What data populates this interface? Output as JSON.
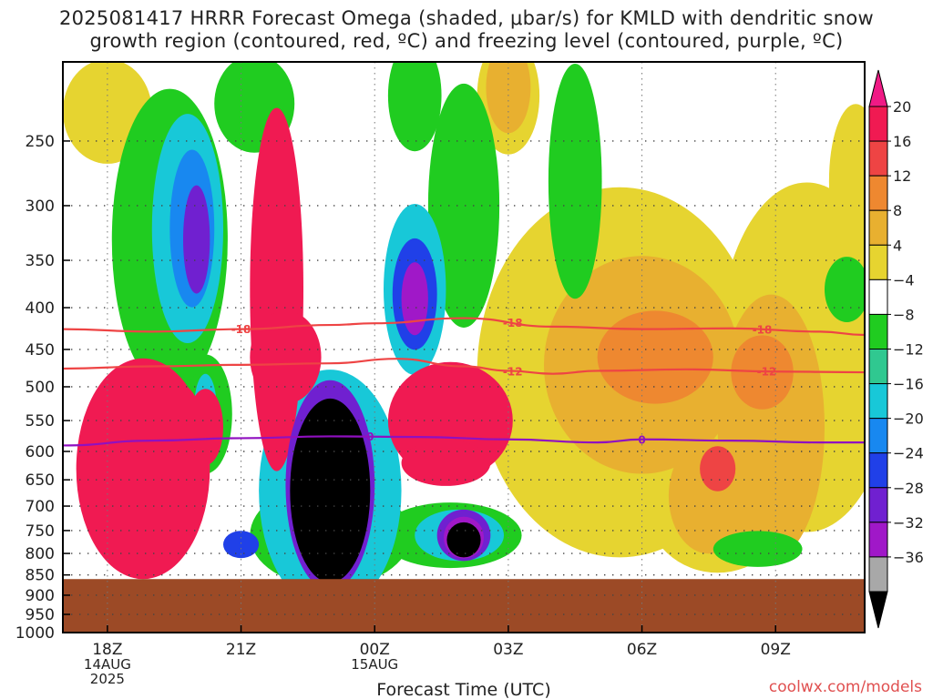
{
  "title": {
    "line1": "2025081417 HRRR Forecast Omega (shaded, μbar/s) for KMLD with dendritic snow",
    "line2": "growth region (contoured, red, ºC) and freezing level (contoured, purple, ºC)"
  },
  "credit": "coolwx.com/models",
  "chart_data": {
    "type": "heatmap",
    "title": "2025081417 HRRR Forecast Omega (shaded, μbar/s) for KMLD with dendritic snow growth region (contoured, red, ºC) and freezing level (contoured, purple, ºC)",
    "xlabel": "Forecast Time (UTC)",
    "ylabel": "",
    "x_ticks": [
      {
        "hour": 0,
        "label": [
          "18Z",
          "14AUG",
          "2025"
        ]
      },
      {
        "hour": 3,
        "label": [
          "21Z"
        ]
      },
      {
        "hour": 6,
        "label": [
          "00Z",
          "15AUG"
        ]
      },
      {
        "hour": 9,
        "label": [
          "03Z"
        ]
      },
      {
        "hour": 12,
        "label": [
          "06Z"
        ]
      },
      {
        "hour": 15,
        "label": [
          "09Z"
        ]
      }
    ],
    "xlim": [
      -1,
      17
    ],
    "y_ticks": [
      250,
      300,
      350,
      400,
      450,
      500,
      550,
      600,
      650,
      700,
      750,
      800,
      850,
      900,
      950,
      1000
    ],
    "ylim_hpa": [
      200,
      1000
    ],
    "y_scale": "log-pressure",
    "ground_pressure": 860,
    "grid": true,
    "colorbar": {
      "ticks": [
        "20",
        "16",
        "12",
        "8",
        "4",
        "−4",
        "−8",
        "−12",
        "−16",
        "−20",
        "−24",
        "−28",
        "−32",
        "−36"
      ],
      "colors": [
        "#f01a52",
        "#ee4444",
        "#ee8830",
        "#e8b030",
        "#e6d430",
        "#ffffff",
        "#20cc20",
        "#30c890",
        "#18c8d8",
        "#1888f0",
        "#2040e8",
        "#7020d0",
        "#a018c8",
        "#a8a8a8",
        "#000000"
      ],
      "top_arrow_color": "#f01a85",
      "bottom_arrow_color": "#000000"
    },
    "contours": [
      {
        "name": "-18",
        "color": "#ee4444",
        "points": [
          [
            -1,
            425
          ],
          [
            1,
            428
          ],
          [
            3,
            425
          ],
          [
            5,
            420
          ],
          [
            6,
            418
          ],
          [
            8,
            412
          ],
          [
            10,
            422
          ],
          [
            12,
            425
          ],
          [
            14,
            424
          ],
          [
            16,
            428
          ],
          [
            17,
            432
          ]
        ],
        "label_hours": [
          3,
          9.1,
          14.7
        ]
      },
      {
        "name": "-12",
        "color": "#ee4444",
        "points": [
          [
            -1,
            475
          ],
          [
            1,
            472
          ],
          [
            3,
            470
          ],
          [
            5,
            468
          ],
          [
            6.5,
            462
          ],
          [
            8,
            472
          ],
          [
            9,
            478
          ],
          [
            10,
            482
          ],
          [
            11,
            478
          ],
          [
            13,
            476
          ],
          [
            15,
            479
          ],
          [
            17,
            480
          ]
        ],
        "label_hours": [
          9.1,
          14.8
        ]
      },
      {
        "name": "0",
        "color": "#9010c0",
        "points": [
          [
            -1,
            590
          ],
          [
            1,
            582
          ],
          [
            3,
            578
          ],
          [
            5,
            575
          ],
          [
            7,
            576
          ],
          [
            9,
            580
          ],
          [
            11,
            585
          ],
          [
            12,
            580
          ],
          [
            14,
            582
          ],
          [
            16,
            585
          ],
          [
            17,
            585
          ]
        ],
        "label_hours": [
          5.9,
          12
        ]
      }
    ],
    "omega_fields": [
      {
        "value": 20,
        "h": 0.8,
        "p": 630,
        "rx": 1.5,
        "ry": 190
      },
      {
        "value": 20,
        "h": 1.5,
        "p": 550,
        "rx": 0.6,
        "ry": 60
      },
      {
        "value": 20,
        "h": 3.8,
        "p": 380,
        "rx": 0.6,
        "ry": 180
      },
      {
        "value": 20,
        "h": 2.2,
        "p": 560,
        "rx": 0.4,
        "ry": 60
      },
      {
        "value": 20,
        "h": 7.7,
        "p": 550,
        "rx": 1.4,
        "ry": 90
      },
      {
        "value": 20,
        "h": 7.6,
        "p": 620,
        "rx": 1.0,
        "ry": 40
      },
      {
        "value": 20,
        "h": 4.0,
        "p": 460,
        "rx": 0.8,
        "ry": 60
      },
      {
        "value": 16,
        "h": 13.7,
        "p": 630,
        "rx": 0.4,
        "ry": 40
      },
      {
        "value": 12,
        "h": 12.3,
        "p": 460,
        "rx": 1.3,
        "ry": 60
      },
      {
        "value": 12,
        "h": 14.7,
        "p": 480,
        "rx": 0.7,
        "ry": 50
      },
      {
        "value": 8,
        "h": 12.0,
        "p": 470,
        "rx": 2.2,
        "ry": 140
      },
      {
        "value": 8,
        "h": 13.5,
        "p": 680,
        "rx": 0.9,
        "ry": 110
      },
      {
        "value": 8,
        "h": 14.9,
        "p": 560,
        "rx": 1.2,
        "ry": 200
      },
      {
        "value": 8,
        "h": 9.0,
        "p": 215,
        "rx": 0.5,
        "ry": 45
      },
      {
        "value": 4,
        "h": 11.5,
        "p": 480,
        "rx": 3.2,
        "ry": 230
      },
      {
        "value": 4,
        "h": 15.7,
        "p": 460,
        "rx": 2.0,
        "ry": 210
      },
      {
        "value": 4,
        "h": 13.7,
        "p": 700,
        "rx": 1.6,
        "ry": 130
      },
      {
        "value": 4,
        "h": 9.0,
        "p": 220,
        "rx": 0.7,
        "ry": 60
      },
      {
        "value": 4,
        "h": 16.8,
        "p": 280,
        "rx": 0.6,
        "ry": 60
      },
      {
        "value": 4,
        "h": 0.0,
        "p": 230,
        "rx": 1.0,
        "ry": 40
      },
      {
        "value": -8,
        "h": 6.9,
        "p": 220,
        "rx": 0.6,
        "ry": 55
      },
      {
        "value": -8,
        "h": 8.0,
        "p": 300,
        "rx": 0.8,
        "ry": 100
      },
      {
        "value": -8,
        "h": 7.7,
        "p": 760,
        "rx": 1.6,
        "ry": 70
      },
      {
        "value": -8,
        "h": 10.5,
        "p": 280,
        "rx": 0.6,
        "ry": 110
      },
      {
        "value": -8,
        "h": 5.0,
        "p": 760,
        "rx": 1.8,
        "ry": 110
      },
      {
        "value": -8,
        "h": 2.2,
        "p": 540,
        "rx": 0.6,
        "ry": 90
      },
      {
        "value": -8,
        "h": 16.6,
        "p": 380,
        "rx": 0.5,
        "ry": 35
      },
      {
        "value": -8,
        "h": 14.6,
        "p": 790,
        "rx": 1.0,
        "ry": 40
      },
      {
        "value": -8,
        "h": 1.4,
        "p": 330,
        "rx": 1.3,
        "ry": 140
      },
      {
        "value": -8,
        "h": 3.3,
        "p": 225,
        "rx": 0.9,
        "ry": 40
      },
      {
        "value": -16,
        "h": 1.8,
        "p": 320,
        "rx": 0.8,
        "ry": 100
      },
      {
        "value": -16,
        "h": 6.9,
        "p": 380,
        "rx": 0.7,
        "ry": 90
      },
      {
        "value": -16,
        "h": 5.0,
        "p": 670,
        "rx": 1.6,
        "ry": 220
      },
      {
        "value": -16,
        "h": 7.9,
        "p": 760,
        "rx": 1.0,
        "ry": 55
      },
      {
        "value": -16,
        "h": 2.2,
        "p": 530,
        "rx": 0.25,
        "ry": 50
      },
      {
        "value": -20,
        "h": 1.9,
        "p": 320,
        "rx": 0.5,
        "ry": 70
      },
      {
        "value": -24,
        "h": 6.9,
        "p": 385,
        "rx": 0.5,
        "ry": 60
      },
      {
        "value": -24,
        "h": 3.0,
        "p": 780,
        "rx": 0.4,
        "ry": 30
      },
      {
        "value": -28,
        "h": 2.0,
        "p": 330,
        "rx": 0.3,
        "ry": 50
      },
      {
        "value": -28,
        "h": 5.0,
        "p": 660,
        "rx": 1.0,
        "ry": 190
      },
      {
        "value": -28,
        "h": 8.0,
        "p": 760,
        "rx": 0.6,
        "ry": 55
      },
      {
        "value": -32,
        "h": 6.9,
        "p": 390,
        "rx": 0.3,
        "ry": 40
      },
      {
        "value": -32,
        "h": 8.0,
        "p": 765,
        "rx": 0.45,
        "ry": 45
      },
      {
        "value": -36,
        "h": 5.0,
        "p": 670,
        "rx": 0.9,
        "ry": 170
      },
      {
        "value": -36,
        "h": 8.0,
        "p": 770,
        "rx": 0.38,
        "ry": 38
      }
    ]
  }
}
